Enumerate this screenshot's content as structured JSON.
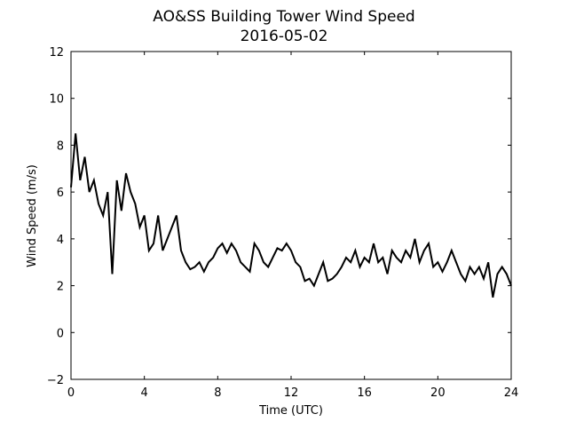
{
  "chart_data": {
    "type": "line",
    "title": "AO&SS Building Tower Wind Speed",
    "subtitle": "2016-05-02",
    "x_label": "Time (UTC)",
    "y_label": "Wind Speed (m/s)",
    "x": [
      0,
      0.25,
      0.5,
      0.75,
      1,
      1.25,
      1.5,
      1.75,
      2,
      2.25,
      2.5,
      2.75,
      3,
      3.25,
      3.5,
      3.75,
      4,
      4.25,
      4.5,
      4.75,
      5,
      5.25,
      5.5,
      5.75,
      6,
      6.25,
      6.5,
      6.75,
      7,
      7.25,
      7.5,
      7.75,
      8,
      8.25,
      8.5,
      8.75,
      9,
      9.25,
      9.5,
      9.75,
      10,
      10.25,
      10.5,
      10.75,
      11,
      11.25,
      11.5,
      11.75,
      12,
      12.25,
      12.5,
      12.75,
      13,
      13.25,
      13.5,
      13.75,
      14,
      14.25,
      14.5,
      14.75,
      15,
      15.25,
      15.5,
      15.75,
      16,
      16.25,
      16.5,
      16.75,
      17,
      17.25,
      17.5,
      17.75,
      18,
      18.25,
      18.5,
      18.75,
      19,
      19.25,
      19.5,
      19.75,
      20,
      20.25,
      20.5,
      20.75,
      21,
      21.25,
      21.5,
      21.75,
      22,
      22.25,
      22.5,
      22.75,
      23,
      23.25,
      23.5,
      23.75,
      24
    ],
    "series": [
      {
        "name": "Wind Speed",
        "color": "#000000",
        "values": [
          6.2,
          8.5,
          6.5,
          7.5,
          6.0,
          6.5,
          5.5,
          5.0,
          6.0,
          2.5,
          6.5,
          5.2,
          6.8,
          6.0,
          5.5,
          4.5,
          5.0,
          3.5,
          3.8,
          5.0,
          3.5,
          4.0,
          4.5,
          5.0,
          3.5,
          3.0,
          2.7,
          2.8,
          3.0,
          2.6,
          3.0,
          3.2,
          3.6,
          3.8,
          3.4,
          3.8,
          3.5,
          3.0,
          2.8,
          2.6,
          3.8,
          3.5,
          3.0,
          2.8,
          3.2,
          3.6,
          3.5,
          3.8,
          3.5,
          3.0,
          2.8,
          2.2,
          2.3,
          2.0,
          2.5,
          3.0,
          2.2,
          2.3,
          2.5,
          2.8,
          3.2,
          3.0,
          3.5,
          2.8,
          3.2,
          3.0,
          3.8,
          3.0,
          3.2,
          2.5,
          3.5,
          3.2,
          3.0,
          3.5,
          3.2,
          4.0,
          3.0,
          3.5,
          3.8,
          2.8,
          3.0,
          2.6,
          3.0,
          3.5,
          3.0,
          2.5,
          2.2,
          2.8,
          2.5,
          2.8,
          2.3,
          3.0,
          1.5,
          2.5,
          2.8,
          2.5,
          2.0
        ]
      }
    ],
    "xlim": [
      0,
      24
    ],
    "xticks": [
      0,
      4,
      8,
      12,
      16,
      20,
      24
    ],
    "ylim": [
      -2,
      12
    ],
    "yticks": [
      {
        "value": -2,
        "label": "−2"
      },
      0,
      2,
      4,
      6,
      8,
      10,
      12
    ],
    "grid": false
  }
}
